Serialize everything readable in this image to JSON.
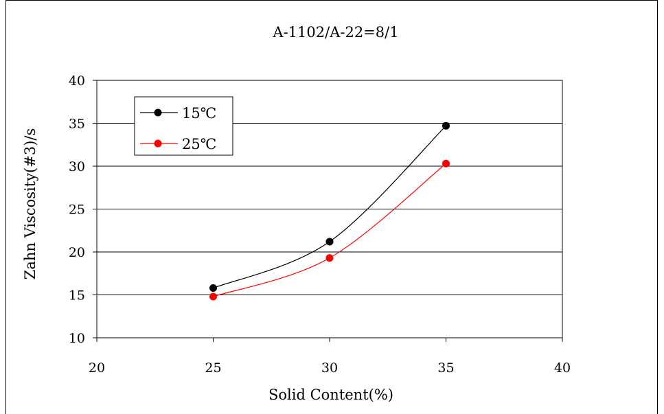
{
  "chart_data": {
    "type": "line",
    "title": "A-1102/A-22=8/1",
    "xlabel": "Solid Content(%)",
    "ylabel": "Zahn Viscosity(#3)/s",
    "xlim": [
      20,
      40
    ],
    "ylim": [
      10,
      40
    ],
    "xticks": [
      "20",
      "25",
      "30",
      "35",
      "40"
    ],
    "yticks": [
      "10",
      "15",
      "20",
      "25",
      "30",
      "35",
      "40"
    ],
    "grid": "horizontal",
    "legend_position": "top-left",
    "series": [
      {
        "name": "15℃",
        "color": "#000000",
        "x": [
          25,
          30,
          35
        ],
        "y": [
          15.8,
          21.2,
          34.7
        ]
      },
      {
        "name": "25℃",
        "color": "#ff0000",
        "x": [
          25,
          30,
          35
        ],
        "y": [
          14.8,
          19.3,
          30.3
        ]
      }
    ]
  }
}
